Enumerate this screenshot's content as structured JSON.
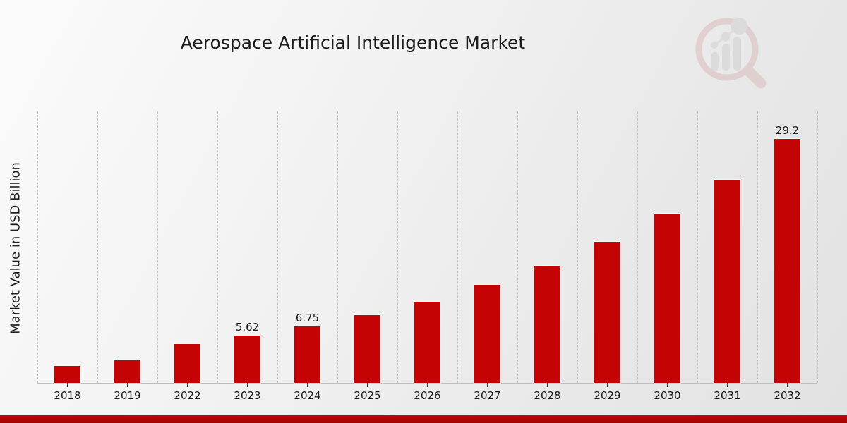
{
  "chart_data": {
    "type": "bar",
    "title": "Aerospace Artificial Intelligence Market",
    "xlabel": "",
    "ylabel": "Market Value in USD Billion",
    "categories": [
      "2018",
      "2019",
      "2022",
      "2023",
      "2024",
      "2025",
      "2026",
      "2027",
      "2028",
      "2029",
      "2030",
      "2031",
      "2032"
    ],
    "values": [
      2.0,
      2.7,
      4.68,
      5.62,
      6.75,
      8.11,
      9.74,
      11.7,
      14.05,
      16.88,
      20.28,
      24.3,
      29.2
    ],
    "data_labels": {
      "2023": "5.62",
      "2024": "6.75",
      "2032": "29.2"
    },
    "ylim": [
      0,
      32.5
    ],
    "grid": "vertical-dashed",
    "legend": "none",
    "bar_color": "#c40404",
    "accent_color": "#b80404",
    "gridline_color": "#c3c3c3",
    "text_color": "#1a1a1a"
  },
  "footer": {
    "stripe_color": "#b80404"
  },
  "logo": {
    "icon": "magnifier-bar-chart-icon"
  }
}
